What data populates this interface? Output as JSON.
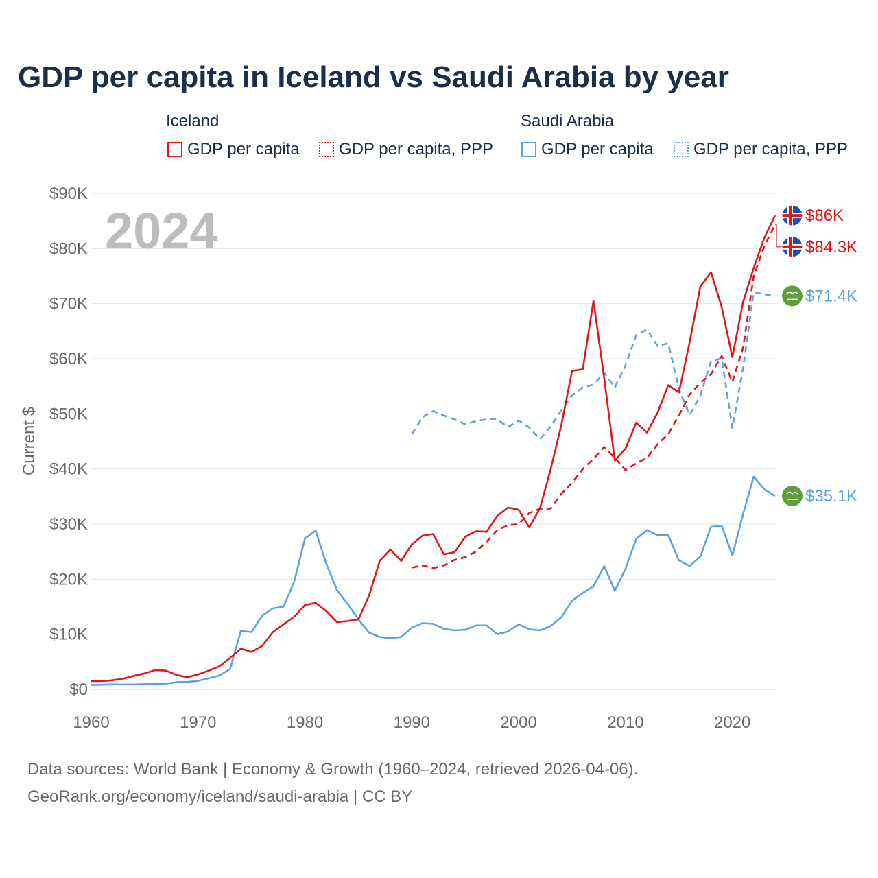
{
  "title": "GDP per capita in Iceland vs Saudi Arabia by year",
  "legend": {
    "groups": [
      {
        "name": "Iceland",
        "items": [
          {
            "label": "GDP per capita",
            "style": "solid",
            "color": "#e3151a"
          },
          {
            "label": "GDP per capita, PPP",
            "style": "dotted",
            "color": "#e3151a"
          }
        ]
      },
      {
        "name": "Saudi Arabia",
        "items": [
          {
            "label": "GDP per capita",
            "style": "solid",
            "color": "#5ba3e0"
          },
          {
            "label": "GDP per capita, PPP",
            "style": "dotted",
            "color": "#5ba3e0"
          }
        ]
      }
    ]
  },
  "year_watermark": "2024",
  "footer": {
    "line1": "Data sources: World Bank | Economy & Growth (1960–2024, retrieved 2026-04-06).",
    "line2": "GeoRank.org/economy/iceland/saudi-arabia | CC BY"
  },
  "chart_data": {
    "type": "line",
    "title": "GDP per capita in Iceland vs Saudi Arabia by year",
    "xlabel": "",
    "ylabel": "Current $",
    "xlim": [
      1960,
      2024
    ],
    "ylim": [
      0,
      90000
    ],
    "x_ticks": [
      1960,
      1970,
      1980,
      1990,
      2000,
      2010,
      2020
    ],
    "x_tick_labels": [
      "1960",
      "1970",
      "1980",
      "1990",
      "2000",
      "2010",
      "2020"
    ],
    "y_ticks": [
      0,
      10000,
      20000,
      30000,
      40000,
      50000,
      60000,
      70000,
      80000,
      90000
    ],
    "y_tick_labels": [
      "$0",
      "$10K",
      "$20K",
      "$30K",
      "$40K",
      "$50K",
      "$60K",
      "$70K",
      "$80K",
      "$90K"
    ],
    "grid": true,
    "series": [
      {
        "name": "Iceland GDP per capita",
        "color": "#e3151a",
        "dash": "solid",
        "end_label": "$86K",
        "flag": "iceland",
        "x_start": 1960,
        "values": [
          1500,
          1500,
          1650,
          1950,
          2450,
          2900,
          3500,
          3400,
          2600,
          2200,
          2700,
          3400,
          4200,
          5700,
          7400,
          6800,
          7900,
          10400,
          11800,
          13200,
          15300,
          15700,
          14200,
          12200,
          12400,
          12700,
          17000,
          23300,
          25400,
          23300,
          26300,
          27900,
          28200,
          24500,
          24900,
          27700,
          28700,
          28600,
          31500,
          33000,
          32600,
          29400,
          32900,
          40000,
          48000,
          57800,
          58100,
          70500,
          56500,
          41500,
          43700,
          48400,
          46600,
          50200,
          55200,
          53900,
          63000,
          73100,
          75700,
          69400,
          60300,
          70300,
          76500,
          82000,
          86000
        ]
      },
      {
        "name": "Iceland GDP per capita, PPP",
        "color": "#e3151a",
        "dash": "dashed",
        "end_label": "$84.3K",
        "flag": "iceland",
        "x_start": 1990,
        "values": [
          22100,
          22500,
          22000,
          22500,
          23500,
          24000,
          25000,
          26800,
          28900,
          29800,
          30000,
          32000,
          32800,
          32800,
          35500,
          37500,
          40000,
          41800,
          44000,
          42000,
          39800,
          41000,
          42000,
          44500,
          46300,
          49700,
          53500,
          55600,
          57200,
          60500,
          55800,
          62000,
          75000,
          80500,
          84300
        ]
      },
      {
        "name": "Saudi Arabia GDP per capita",
        "color": "#5ba3e0",
        "dash": "solid",
        "end_label": "$35.1K",
        "flag": "saudi",
        "x_start": 1960,
        "values": [
          800,
          850,
          900,
          900,
          900,
          950,
          1000,
          1050,
          1300,
          1350,
          1550,
          2000,
          2500,
          3700,
          10600,
          10400,
          13400,
          14700,
          15000,
          19600,
          27400,
          28800,
          22800,
          18000,
          15500,
          12700,
          10300,
          9500,
          9300,
          9500,
          11200,
          12000,
          11900,
          11000,
          10700,
          10800,
          11600,
          11600,
          10000,
          10500,
          11800,
          10900,
          10700,
          11500,
          13100,
          16100,
          17500,
          18700,
          22400,
          17900,
          21900,
          27300,
          28900,
          28000,
          28000,
          23400,
          22400,
          24100,
          29500,
          29700,
          24300,
          31800,
          38600,
          36300,
          35100
        ]
      },
      {
        "name": "Saudi Arabia GDP per capita, PPP",
        "color": "#5ba3e0",
        "dash": "dashed",
        "end_label": "$71.4K",
        "flag": "saudi",
        "x_start": 1990,
        "values": [
          46300,
          49400,
          50500,
          49700,
          49000,
          48100,
          48700,
          49000,
          49000,
          47600,
          48800,
          47500,
          45400,
          47700,
          50700,
          53300,
          54800,
          55300,
          57500,
          54800,
          58800,
          64300,
          65300,
          62300,
          62800,
          54500,
          49800,
          53300,
          59500,
          60100,
          47400,
          58300,
          72100,
          71700,
          71400
        ]
      }
    ]
  }
}
